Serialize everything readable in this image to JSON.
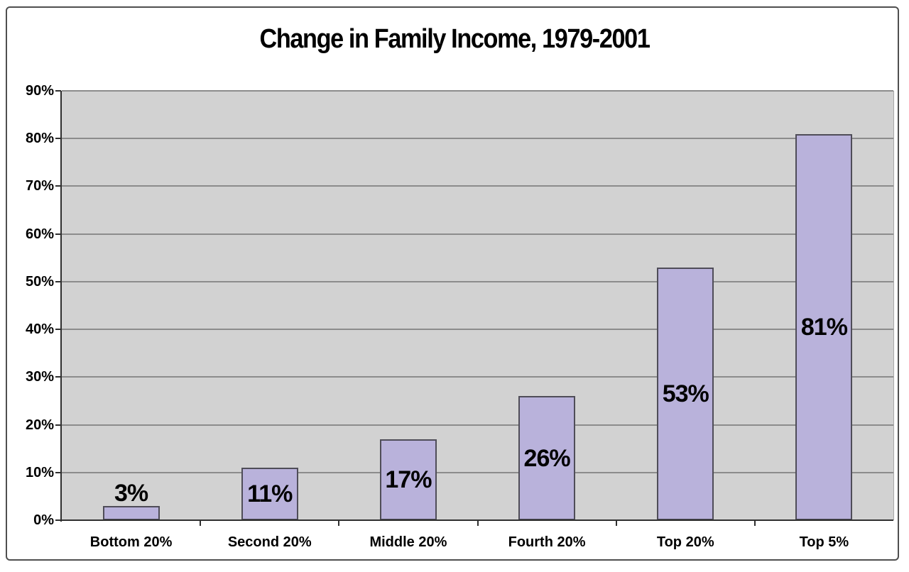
{
  "chart_data": {
    "type": "bar",
    "title": "Change in Family Income, 1979-2001",
    "categories": [
      "Bottom 20%",
      "Second 20%",
      "Middle 20%",
      "Fourth 20%",
      "Top 20%",
      "Top 5%"
    ],
    "values": [
      3,
      11,
      17,
      26,
      53,
      81
    ],
    "value_labels": [
      "3%",
      "11%",
      "17%",
      "26%",
      "53%",
      "81%"
    ],
    "xlabel": "",
    "ylabel": "",
    "y_axis": {
      "min": 0,
      "max": 90,
      "step": 10,
      "tick_labels": [
        "0%",
        "10%",
        "20%",
        "30%",
        "40%",
        "50%",
        "60%",
        "70%",
        "80%",
        "90%"
      ]
    },
    "grid": true,
    "legend": "none",
    "colors": {
      "bar_fill": "#b9b2db",
      "bar_border": "#4f4d58",
      "plot_bg": "#d2d2d2",
      "gridline": "#8c8c8c",
      "axis": "#2f2f2f",
      "frame_border": "#4f4f4f",
      "page_bg": "#ffffff",
      "label_color": "#000000"
    }
  }
}
